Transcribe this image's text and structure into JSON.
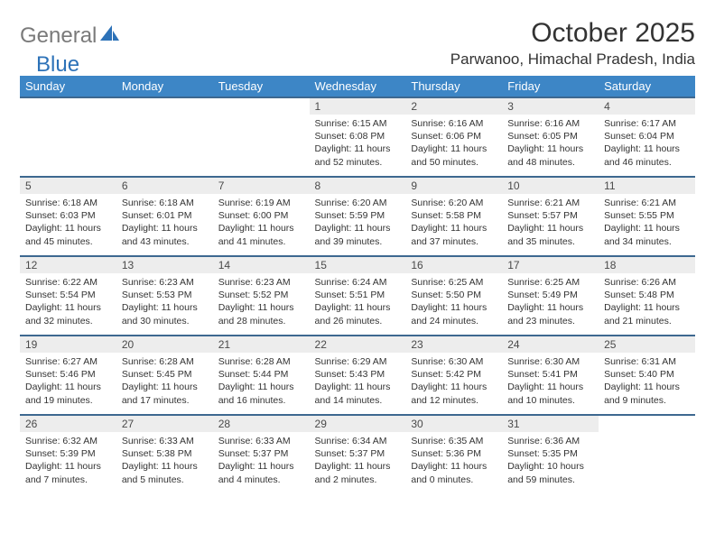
{
  "logo": {
    "general": "General",
    "blue": "Blue"
  },
  "title": "October 2025",
  "location": "Parwanoo, Himachal Pradesh, India",
  "colors": {
    "header_bg": "#3d86c6",
    "header_text": "#ffffff",
    "row_border": "#3d6890",
    "daynum_bg": "#ededed",
    "logo_gray": "#7a7a7a",
    "logo_blue": "#2d72b8"
  },
  "weekdays": [
    "Sunday",
    "Monday",
    "Tuesday",
    "Wednesday",
    "Thursday",
    "Friday",
    "Saturday"
  ],
  "weeks": [
    [
      {
        "n": "",
        "sr": "",
        "ss": "",
        "dl": ""
      },
      {
        "n": "",
        "sr": "",
        "ss": "",
        "dl": ""
      },
      {
        "n": "",
        "sr": "",
        "ss": "",
        "dl": ""
      },
      {
        "n": "1",
        "sr": "Sunrise: 6:15 AM",
        "ss": "Sunset: 6:08 PM",
        "dl": "Daylight: 11 hours and 52 minutes."
      },
      {
        "n": "2",
        "sr": "Sunrise: 6:16 AM",
        "ss": "Sunset: 6:06 PM",
        "dl": "Daylight: 11 hours and 50 minutes."
      },
      {
        "n": "3",
        "sr": "Sunrise: 6:16 AM",
        "ss": "Sunset: 6:05 PM",
        "dl": "Daylight: 11 hours and 48 minutes."
      },
      {
        "n": "4",
        "sr": "Sunrise: 6:17 AM",
        "ss": "Sunset: 6:04 PM",
        "dl": "Daylight: 11 hours and 46 minutes."
      }
    ],
    [
      {
        "n": "5",
        "sr": "Sunrise: 6:18 AM",
        "ss": "Sunset: 6:03 PM",
        "dl": "Daylight: 11 hours and 45 minutes."
      },
      {
        "n": "6",
        "sr": "Sunrise: 6:18 AM",
        "ss": "Sunset: 6:01 PM",
        "dl": "Daylight: 11 hours and 43 minutes."
      },
      {
        "n": "7",
        "sr": "Sunrise: 6:19 AM",
        "ss": "Sunset: 6:00 PM",
        "dl": "Daylight: 11 hours and 41 minutes."
      },
      {
        "n": "8",
        "sr": "Sunrise: 6:20 AM",
        "ss": "Sunset: 5:59 PM",
        "dl": "Daylight: 11 hours and 39 minutes."
      },
      {
        "n": "9",
        "sr": "Sunrise: 6:20 AM",
        "ss": "Sunset: 5:58 PM",
        "dl": "Daylight: 11 hours and 37 minutes."
      },
      {
        "n": "10",
        "sr": "Sunrise: 6:21 AM",
        "ss": "Sunset: 5:57 PM",
        "dl": "Daylight: 11 hours and 35 minutes."
      },
      {
        "n": "11",
        "sr": "Sunrise: 6:21 AM",
        "ss": "Sunset: 5:55 PM",
        "dl": "Daylight: 11 hours and 34 minutes."
      }
    ],
    [
      {
        "n": "12",
        "sr": "Sunrise: 6:22 AM",
        "ss": "Sunset: 5:54 PM",
        "dl": "Daylight: 11 hours and 32 minutes."
      },
      {
        "n": "13",
        "sr": "Sunrise: 6:23 AM",
        "ss": "Sunset: 5:53 PM",
        "dl": "Daylight: 11 hours and 30 minutes."
      },
      {
        "n": "14",
        "sr": "Sunrise: 6:23 AM",
        "ss": "Sunset: 5:52 PM",
        "dl": "Daylight: 11 hours and 28 minutes."
      },
      {
        "n": "15",
        "sr": "Sunrise: 6:24 AM",
        "ss": "Sunset: 5:51 PM",
        "dl": "Daylight: 11 hours and 26 minutes."
      },
      {
        "n": "16",
        "sr": "Sunrise: 6:25 AM",
        "ss": "Sunset: 5:50 PM",
        "dl": "Daylight: 11 hours and 24 minutes."
      },
      {
        "n": "17",
        "sr": "Sunrise: 6:25 AM",
        "ss": "Sunset: 5:49 PM",
        "dl": "Daylight: 11 hours and 23 minutes."
      },
      {
        "n": "18",
        "sr": "Sunrise: 6:26 AM",
        "ss": "Sunset: 5:48 PM",
        "dl": "Daylight: 11 hours and 21 minutes."
      }
    ],
    [
      {
        "n": "19",
        "sr": "Sunrise: 6:27 AM",
        "ss": "Sunset: 5:46 PM",
        "dl": "Daylight: 11 hours and 19 minutes."
      },
      {
        "n": "20",
        "sr": "Sunrise: 6:28 AM",
        "ss": "Sunset: 5:45 PM",
        "dl": "Daylight: 11 hours and 17 minutes."
      },
      {
        "n": "21",
        "sr": "Sunrise: 6:28 AM",
        "ss": "Sunset: 5:44 PM",
        "dl": "Daylight: 11 hours and 16 minutes."
      },
      {
        "n": "22",
        "sr": "Sunrise: 6:29 AM",
        "ss": "Sunset: 5:43 PM",
        "dl": "Daylight: 11 hours and 14 minutes."
      },
      {
        "n": "23",
        "sr": "Sunrise: 6:30 AM",
        "ss": "Sunset: 5:42 PM",
        "dl": "Daylight: 11 hours and 12 minutes."
      },
      {
        "n": "24",
        "sr": "Sunrise: 6:30 AM",
        "ss": "Sunset: 5:41 PM",
        "dl": "Daylight: 11 hours and 10 minutes."
      },
      {
        "n": "25",
        "sr": "Sunrise: 6:31 AM",
        "ss": "Sunset: 5:40 PM",
        "dl": "Daylight: 11 hours and 9 minutes."
      }
    ],
    [
      {
        "n": "26",
        "sr": "Sunrise: 6:32 AM",
        "ss": "Sunset: 5:39 PM",
        "dl": "Daylight: 11 hours and 7 minutes."
      },
      {
        "n": "27",
        "sr": "Sunrise: 6:33 AM",
        "ss": "Sunset: 5:38 PM",
        "dl": "Daylight: 11 hours and 5 minutes."
      },
      {
        "n": "28",
        "sr": "Sunrise: 6:33 AM",
        "ss": "Sunset: 5:37 PM",
        "dl": "Daylight: 11 hours and 4 minutes."
      },
      {
        "n": "29",
        "sr": "Sunrise: 6:34 AM",
        "ss": "Sunset: 5:37 PM",
        "dl": "Daylight: 11 hours and 2 minutes."
      },
      {
        "n": "30",
        "sr": "Sunrise: 6:35 AM",
        "ss": "Sunset: 5:36 PM",
        "dl": "Daylight: 11 hours and 0 minutes."
      },
      {
        "n": "31",
        "sr": "Sunrise: 6:36 AM",
        "ss": "Sunset: 5:35 PM",
        "dl": "Daylight: 10 hours and 59 minutes."
      },
      {
        "n": "",
        "sr": "",
        "ss": "",
        "dl": ""
      }
    ]
  ]
}
